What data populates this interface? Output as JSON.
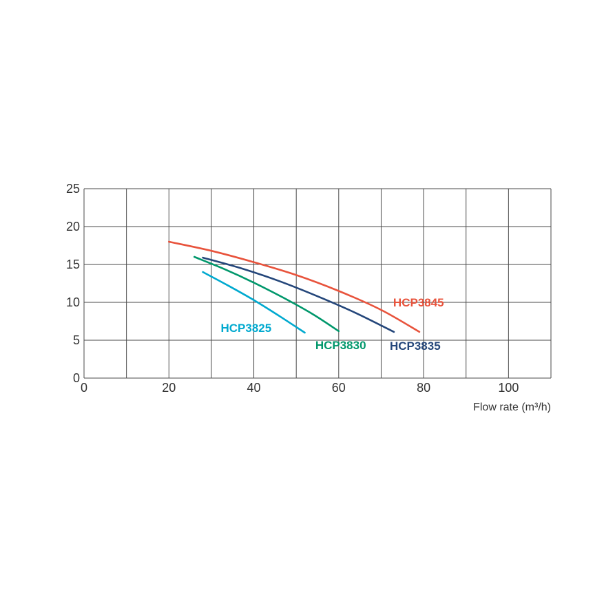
{
  "chart_data": {
    "type": "line",
    "xlabel": "Flow rate (m³/h)",
    "ylabel": "",
    "xlim": [
      0,
      110
    ],
    "ylim": [
      0,
      25
    ],
    "x_ticks": [
      0,
      20,
      40,
      60,
      80,
      100
    ],
    "y_ticks": [
      0,
      5,
      10,
      15,
      20,
      25
    ],
    "x_grid_step": 10,
    "y_grid_step": 5,
    "grid": true,
    "series": [
      {
        "name": "HCP3825",
        "color": "#00a9cf",
        "x": [
          28,
          34,
          40,
          46,
          52
        ],
        "y": [
          14.0,
          12.2,
          10.3,
          8.2,
          6.0
        ]
      },
      {
        "name": "HCP3830",
        "color": "#00976b",
        "x": [
          26,
          33,
          40,
          47,
          54,
          60
        ],
        "y": [
          16.0,
          14.4,
          12.6,
          10.6,
          8.4,
          6.2
        ]
      },
      {
        "name": "HCP3835",
        "color": "#24467a",
        "x": [
          28,
          37,
          46,
          55,
          64,
          73
        ],
        "y": [
          15.9,
          14.5,
          12.8,
          10.8,
          8.6,
          6.1
        ]
      },
      {
        "name": "HCP3845",
        "color": "#e8533c",
        "x": [
          20,
          30,
          40,
          50,
          60,
          70,
          79
        ],
        "y": [
          18.0,
          16.8,
          15.3,
          13.6,
          11.5,
          9.0,
          6.1
        ]
      }
    ]
  }
}
